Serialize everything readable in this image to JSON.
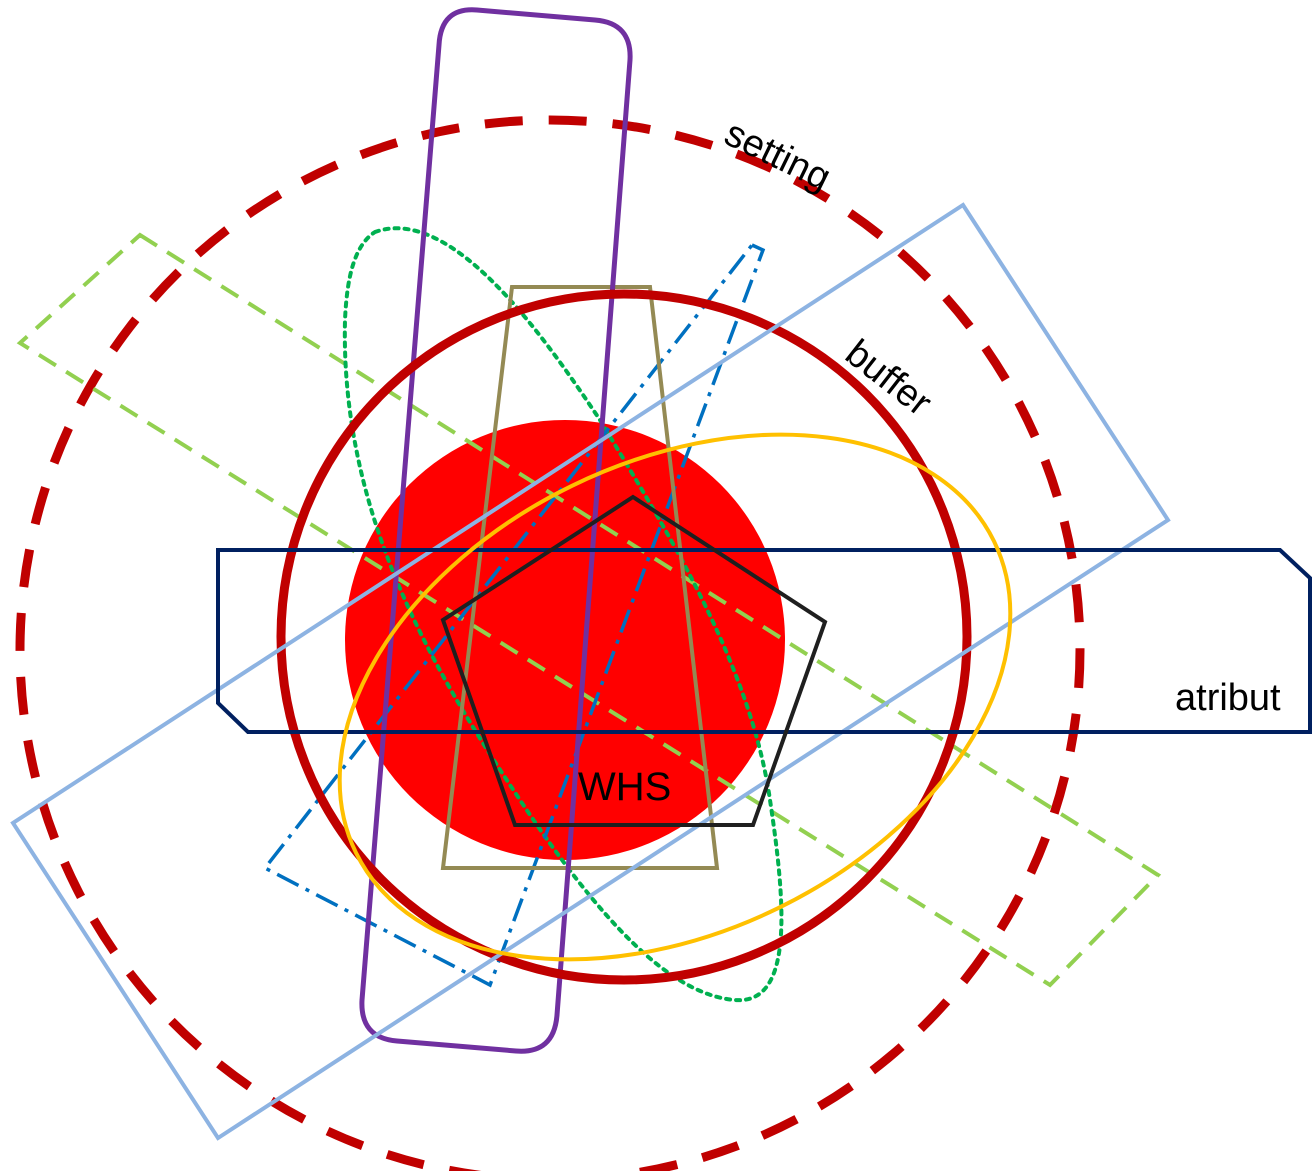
{
  "labels": {
    "setting": "setting",
    "buffer": "buffer",
    "atribut": "atribut",
    "whs": "WHS"
  },
  "colors": {
    "background": "#ffffff",
    "core_fill": "#ff0000",
    "buffer_circle": "#c00000",
    "setting_circle": "#c00000",
    "purple_rect": "#7030a0",
    "light_blue_rect": "#8db3e2",
    "navy_rect": "#002060",
    "green_dashed_rect": "#92d050",
    "dotted_loop": "#00b050",
    "dashdot_kite": "#0070c0",
    "trapezoid": "#948a54",
    "gold_ellipse": "#ffc000",
    "pentagon": "#1f1f1f"
  }
}
